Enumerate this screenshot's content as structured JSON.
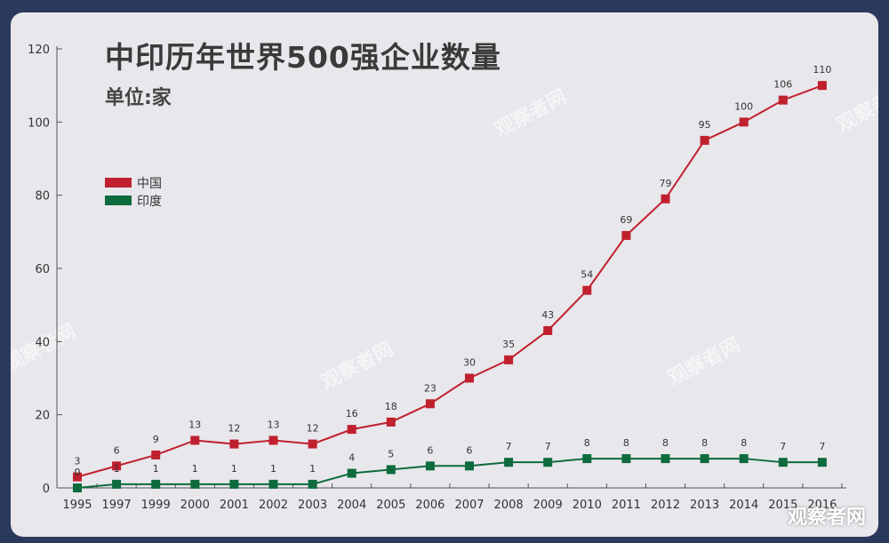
{
  "title": "中印历年世界500强企业数量",
  "subtitle": "单位:家",
  "watermark": "观察者网",
  "watermark_bottom": "观察者网",
  "chart_data": {
    "type": "line",
    "title": "中印历年世界500强企业数量",
    "subtitle": "单位:家",
    "categories": [
      "1995",
      "1997",
      "1999",
      "2000",
      "2001",
      "2002",
      "2003",
      "2004",
      "2005",
      "2006",
      "2007",
      "2008",
      "2009",
      "2010",
      "2011",
      "2012",
      "2013",
      "2014",
      "2015",
      "2016"
    ],
    "series": [
      {
        "name": "中国",
        "color": "#c0202e",
        "values": [
          3,
          6,
          9,
          13,
          12,
          13,
          12,
          16,
          18,
          23,
          30,
          35,
          43,
          54,
          69,
          79,
          95,
          100,
          106,
          110
        ]
      },
      {
        "name": "印度",
        "color": "#0d6b3d",
        "values": [
          0,
          1,
          1,
          1,
          1,
          1,
          1,
          4,
          5,
          6,
          6,
          7,
          7,
          8,
          8,
          8,
          8,
          8,
          7,
          7
        ]
      }
    ],
    "yticks": [
      0,
      20,
      40,
      60,
      80,
      100,
      120
    ],
    "ylim": [
      0,
      120
    ],
    "legend": "top-left",
    "grid": false
  }
}
